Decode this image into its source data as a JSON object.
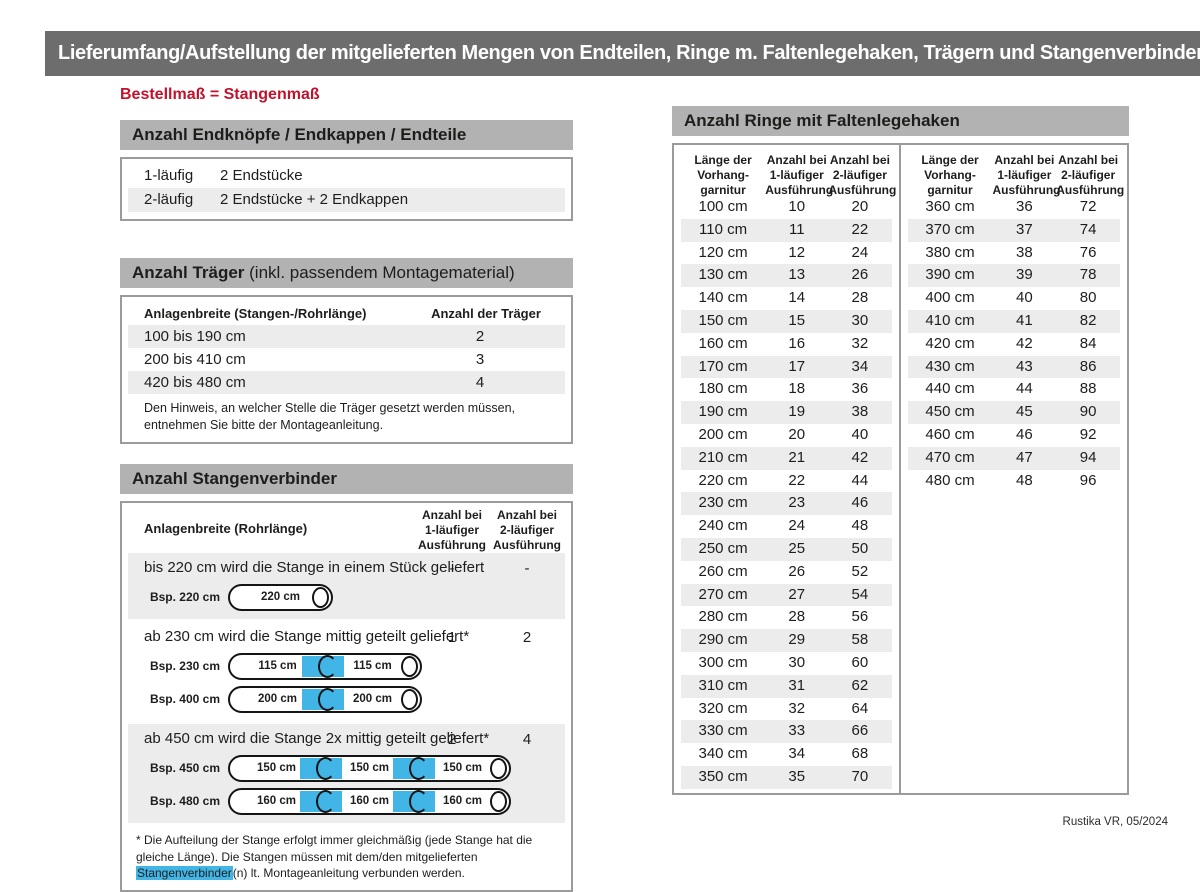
{
  "page": {
    "title": "Lieferumfang/Aufstellung der mitgelieferten Mengen von Endteilen, Ringe m. Faltenlegehaken, Trägern und Stangenverbindern:",
    "subtitle": "Bestellmaß = Stangenmaß",
    "footer": "Rustika VR, 05/2024"
  },
  "colors": {
    "title_bar_gray": "#6d6d6d",
    "section_bar_gray": "#b2b2b2",
    "row_stripe_gray": "#ececec",
    "accent_red": "#c2122b",
    "connector_blue": "#41b6e6",
    "border_gray": "#9b9b9b"
  },
  "endpieces": {
    "header": "Anzahl Endknöpfe / Endkappen / Endteile",
    "rows": [
      {
        "label": "1-läufig",
        "value": "2 Endstücke"
      },
      {
        "label": "2-läufig",
        "value": "2 Endstücke + 2 Endkappen"
      }
    ]
  },
  "traeger": {
    "header_bold": "Anzahl Träger",
    "header_rest": " (inkl. passendem Montagematerial)",
    "col1": "Anlagenbreite (Stangen-/Rohrlänge)",
    "col2": "Anzahl der Träger",
    "rows": [
      {
        "range": "100 bis 190 cm",
        "count": "2"
      },
      {
        "range": "200 bis 410 cm",
        "count": "3"
      },
      {
        "range": "420 bis 480 cm",
        "count": "4"
      }
    ],
    "note": "Den Hinweis, an welcher Stelle die Träger gesetzt werden müssen, entnehmen Sie bitte der Montageanleitung."
  },
  "verbinder": {
    "header": "Anzahl Stangenverbinder",
    "col1": "Anlagenbreite (Rohrlänge)",
    "col2": "Anzahl bei\n1-läufiger\nAusführung",
    "col3": "Anzahl bei\n2-läufiger\nAusführung",
    "rows": [
      {
        "text": "bis 220 cm wird die Stange in einem Stück geliefert",
        "count1": "-",
        "count2": "-",
        "rods": [
          {
            "label": "Bsp. 220 cm",
            "segments": [
              "220 cm"
            ]
          }
        ]
      },
      {
        "text": "ab 230 cm wird die Stange mittig geteilt geliefert*",
        "count1": "1",
        "count2": "2",
        "rods": [
          {
            "label": "Bsp. 230 cm",
            "segments": [
              "115 cm",
              "115 cm"
            ]
          },
          {
            "label": "Bsp. 400 cm",
            "segments": [
              "200 cm",
              "200 cm"
            ]
          }
        ]
      },
      {
        "text": "ab 450 cm wird die Stange 2x mittig geteilt geliefert*",
        "count1": "2",
        "count2": "4",
        "rods": [
          {
            "label": "Bsp. 450 cm",
            "segments": [
              "150 cm",
              "150 cm",
              "150 cm"
            ]
          },
          {
            "label": "Bsp. 480 cm",
            "segments": [
              "160 cm",
              "160 cm",
              "160 cm"
            ]
          }
        ]
      }
    ],
    "footnote_pre": "* Die Aufteilung der Stange erfolgt immer gleichmäßig (jede Stange hat die gleiche Länge). Die Stangen müssen mit dem/den mitgelieferten ",
    "footnote_highlight": "Stangenverbinder",
    "footnote_post": "(n) lt. Montageanleitung verbunden werden."
  },
  "ringe": {
    "header": "Anzahl Ringe mit Faltenlegehaken",
    "col1": "Länge der\nVorhang-\ngarnitur",
    "col2": "Anzahl bei\n1-läufiger\nAusführung",
    "col3": "Anzahl bei\n2-läufiger\nAusführung",
    "table_left_rows": [
      [
        "100 cm",
        "10",
        "20"
      ],
      [
        "110 cm",
        "11",
        "22"
      ],
      [
        "120 cm",
        "12",
        "24"
      ],
      [
        "130 cm",
        "13",
        "26"
      ],
      [
        "140 cm",
        "14",
        "28"
      ],
      [
        "150 cm",
        "15",
        "30"
      ],
      [
        "160 cm",
        "16",
        "32"
      ],
      [
        "170 cm",
        "17",
        "34"
      ],
      [
        "180 cm",
        "18",
        "36"
      ],
      [
        "190 cm",
        "19",
        "38"
      ],
      [
        "200 cm",
        "20",
        "40"
      ],
      [
        "210 cm",
        "21",
        "42"
      ],
      [
        "220 cm",
        "22",
        "44"
      ],
      [
        "230 cm",
        "23",
        "46"
      ],
      [
        "240 cm",
        "24",
        "48"
      ],
      [
        "250 cm",
        "25",
        "50"
      ],
      [
        "260 cm",
        "26",
        "52"
      ],
      [
        "270 cm",
        "27",
        "54"
      ],
      [
        "280 cm",
        "28",
        "56"
      ],
      [
        "290 cm",
        "29",
        "58"
      ],
      [
        "300 cm",
        "30",
        "60"
      ],
      [
        "310 cm",
        "31",
        "62"
      ],
      [
        "320 cm",
        "32",
        "64"
      ],
      [
        "330 cm",
        "33",
        "66"
      ],
      [
        "340 cm",
        "34",
        "68"
      ],
      [
        "350 cm",
        "35",
        "70"
      ]
    ],
    "table_right_rows": [
      [
        "360 cm",
        "36",
        "72"
      ],
      [
        "370 cm",
        "37",
        "74"
      ],
      [
        "380 cm",
        "38",
        "76"
      ],
      [
        "390 cm",
        "39",
        "78"
      ],
      [
        "400 cm",
        "40",
        "80"
      ],
      [
        "410 cm",
        "41",
        "82"
      ],
      [
        "420 cm",
        "42",
        "84"
      ],
      [
        "430 cm",
        "43",
        "86"
      ],
      [
        "440 cm",
        "44",
        "88"
      ],
      [
        "450 cm",
        "45",
        "90"
      ],
      [
        "460 cm",
        "46",
        "92"
      ],
      [
        "470 cm",
        "47",
        "94"
      ],
      [
        "480 cm",
        "48",
        "96"
      ]
    ]
  }
}
